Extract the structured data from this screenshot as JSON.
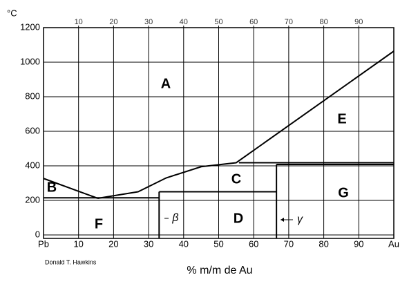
{
  "chart_data": {
    "type": "line",
    "y_unit": "°C",
    "xlabel": "% m/m de Au",
    "credit": "Donald T. Hawkins",
    "xlim": [
      0,
      100
    ],
    "xticks": [
      {
        "value": 0,
        "label": "Pb"
      },
      10,
      20,
      30,
      40,
      50,
      60,
      70,
      80,
      90,
      {
        "value": 100,
        "label": "Au"
      }
    ],
    "x2ticks": [
      10,
      20,
      30,
      40,
      50,
      60,
      70,
      80,
      90
    ],
    "ylim": [
      -20,
      1200
    ],
    "yticks": [
      0,
      200,
      400,
      600,
      800,
      1000,
      1200
    ],
    "grid": true,
    "color": "#000000",
    "series": [
      {
        "x": [
          0,
          15.5
        ],
        "values": [
          327,
          212
        ]
      },
      {
        "x": [
          15.5,
          27,
          35,
          45,
          55,
          100
        ],
        "values": [
          212,
          250,
          330,
          395,
          418,
          1064
        ]
      },
      {
        "x": [
          0,
          33
        ],
        "values": [
          215,
          215
        ]
      },
      {
        "x": [
          33,
          66.5
        ],
        "values": [
          250,
          250
        ]
      },
      {
        "x": [
          33,
          33
        ],
        "values": [
          250,
          -20
        ]
      },
      {
        "x": [
          66.5,
          66.5
        ],
        "values": [
          408,
          -20
        ]
      },
      {
        "x": [
          55.8,
          100
        ],
        "values": [
          418,
          418
        ]
      },
      {
        "x": [
          66.5,
          100
        ],
        "values": [
          408,
          408
        ]
      }
    ],
    "annotations": [
      "A",
      "B",
      "C",
      "D",
      "E",
      "F",
      "G",
      "β",
      "γ"
    ]
  }
}
